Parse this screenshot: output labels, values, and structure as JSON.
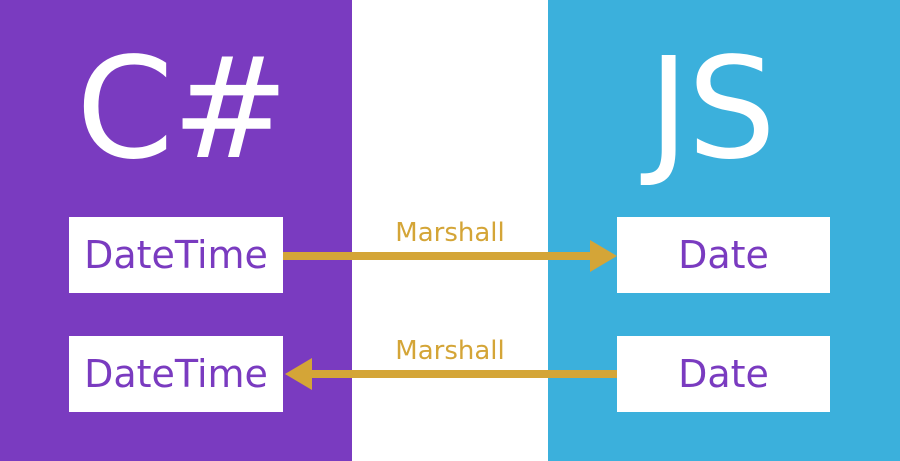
{
  "colors": {
    "csharp_panel": "#7a3bc0",
    "js_panel": "#3bb0dc",
    "arrow": "#d4a537",
    "box_text": "#7a3bc0"
  },
  "left": {
    "title": "C#",
    "boxes": [
      "DateTime",
      "DateTime"
    ]
  },
  "right": {
    "title": "JS",
    "boxes": [
      "Date",
      "Date"
    ]
  },
  "arrows": [
    {
      "label": "Marshall",
      "direction": "left-to-right"
    },
    {
      "label": "Marshall",
      "direction": "right-to-left"
    }
  ]
}
